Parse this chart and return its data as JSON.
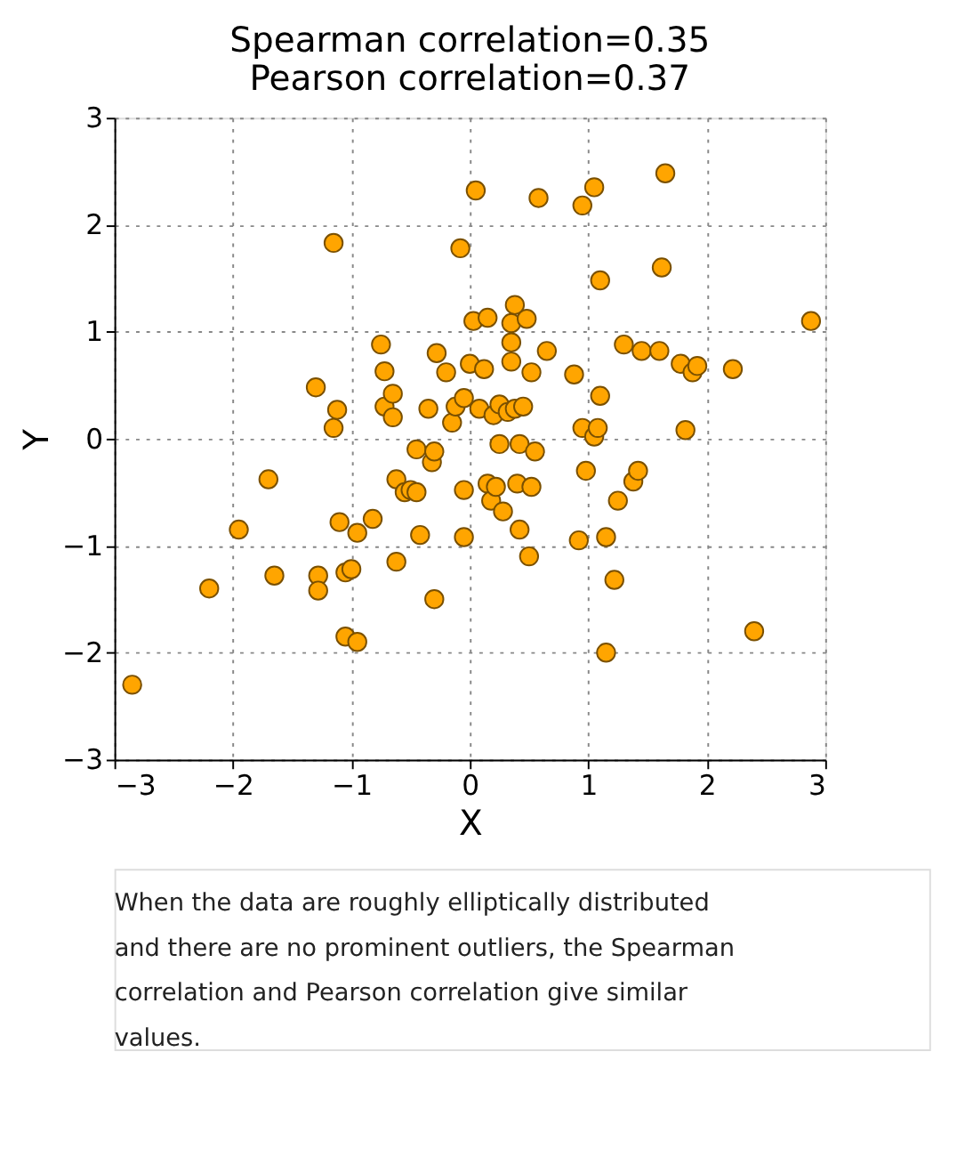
{
  "chart_data": {
    "type": "scatter",
    "title": "Spearman correlation=0.35\nPearson correlation=0.37",
    "xlabel": "X",
    "ylabel": "Y",
    "xlim": [
      -3,
      3
    ],
    "ylim": [
      -3,
      3
    ],
    "xticks": [
      -3,
      -2,
      -1,
      0,
      1,
      2,
      3
    ],
    "yticks": [
      -3,
      -2,
      -1,
      0,
      1,
      2,
      3
    ],
    "grid": true,
    "marker": "circle",
    "series": [
      {
        "color": "#ffa500",
        "x": [
          -2.85,
          -2.2,
          -1.95,
          -1.7,
          -1.65,
          -1.3,
          -1.28,
          -1.28,
          -1.15,
          -1.15,
          -1.12,
          -1.1,
          -1.05,
          -1.05,
          -1.0,
          -0.95,
          -0.95,
          -0.82,
          -0.75,
          -0.72,
          -0.72,
          -0.65,
          -0.65,
          -0.62,
          -0.62,
          -0.55,
          -0.5,
          -0.45,
          -0.45,
          -0.42,
          -0.35,
          -0.32,
          -0.3,
          -0.3,
          -0.28,
          -0.2,
          -0.15,
          -0.12,
          -0.08,
          -0.05,
          -0.05,
          -0.05,
          0.0,
          0.03,
          0.05,
          0.08,
          0.12,
          0.15,
          0.15,
          0.18,
          0.2,
          0.22,
          0.25,
          0.25,
          0.28,
          0.32,
          0.35,
          0.35,
          0.35,
          0.38,
          0.38,
          0.4,
          0.42,
          0.42,
          0.45,
          0.48,
          0.5,
          0.52,
          0.52,
          0.55,
          0.58,
          0.65,
          0.88,
          0.92,
          0.95,
          0.95,
          0.98,
          1.05,
          1.05,
          1.08,
          1.1,
          1.1,
          1.15,
          1.15,
          1.22,
          1.25,
          1.3,
          1.38,
          1.42,
          1.45,
          1.6,
          1.62,
          1.65,
          1.78,
          1.82,
          1.88,
          1.92,
          2.22,
          2.4,
          2.88
        ],
        "values": [
          -2.3,
          -1.4,
          -0.85,
          -0.38,
          -1.28,
          0.48,
          -1.28,
          -1.42,
          1.83,
          0.1,
          0.27,
          -0.78,
          -1.25,
          -1.85,
          -1.22,
          -0.88,
          -1.9,
          -0.75,
          0.88,
          0.63,
          0.3,
          0.42,
          0.2,
          -0.38,
          -1.15,
          -0.5,
          -0.48,
          -0.5,
          -0.1,
          -0.9,
          0.28,
          -0.22,
          -0.12,
          -1.5,
          0.8,
          0.62,
          0.15,
          0.3,
          1.78,
          0.38,
          -0.48,
          -0.92,
          0.7,
          1.1,
          2.32,
          0.28,
          0.65,
          1.13,
          -0.42,
          -0.58,
          0.22,
          -0.45,
          0.32,
          -0.05,
          -0.68,
          0.25,
          1.08,
          0.9,
          0.72,
          1.25,
          0.28,
          -0.42,
          -0.05,
          -0.85,
          0.3,
          1.12,
          -1.1,
          0.62,
          -0.45,
          -0.12,
          2.25,
          0.82,
          0.6,
          -0.95,
          2.18,
          0.1,
          -0.3,
          2.35,
          0.02,
          0.1,
          1.48,
          0.4,
          -0.92,
          -2.0,
          -1.32,
          -0.58,
          0.88,
          -0.4,
          -0.3,
          0.82,
          0.82,
          1.6,
          2.48,
          0.7,
          0.08,
          0.62,
          0.68,
          0.65,
          -1.8,
          1.1
        ]
      }
    ],
    "annotations": [
      "When the data are roughly elliptically distributed and there are no prominent outliers, the Spearman correlation and Pearson correlation give similar values."
    ]
  }
}
